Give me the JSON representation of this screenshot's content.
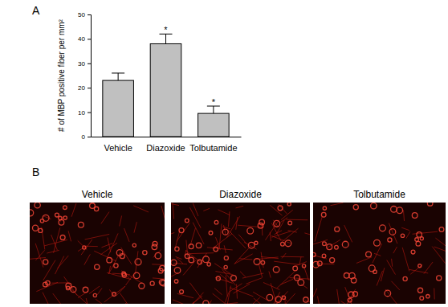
{
  "chart_data": {
    "type": "bar",
    "y_label": "# of MBP positive fiber per mm²",
    "categories": [
      "Vehicle",
      "Diazoxide",
      "Tolbutamide"
    ],
    "values": [
      23,
      38,
      9.5
    ],
    "errors": [
      3,
      4,
      3
    ],
    "color": "#c0c0c0",
    "ylim": [
      0,
      50
    ],
    "yticks": [
      0,
      10,
      20,
      30,
      40,
      50
    ],
    "grid": false,
    "annotations": [
      {
        "text": "*",
        "category": "Diazoxide"
      },
      {
        "text": "*",
        "category": "Tolbutamide"
      }
    ]
  },
  "panels": [
    "A",
    "B"
  ],
  "images": {
    "labels": [
      "Vehicle",
      "Diazoxide",
      "Tolbutamide"
    ]
  }
}
